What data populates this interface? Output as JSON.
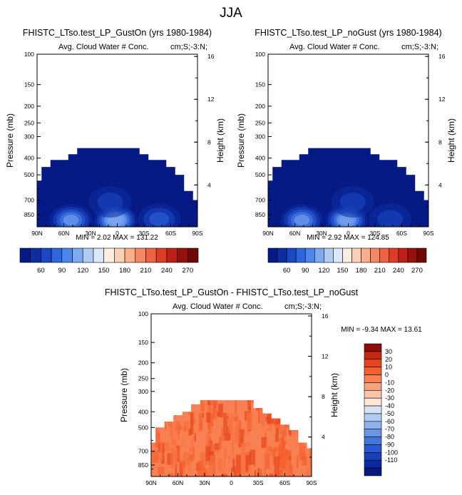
{
  "figure": {
    "title": "JJA",
    "left_title": "FHISTC_LTso.test_LP_GustOn (yrs 1980-1984)",
    "right_title": "FHISTC_LTso.test_LP_noGust (yrs 1980-1984)",
    "diff_title": "FHISTC_LTso.test_LP_GustOn - FHISTC_LTso.test_LP_noGust",
    "variable": "Avg. Cloud Water # Conc.",
    "units": "cm;S;-3:N;",
    "left_ylabel": "Pressure (mb)",
    "right_ylabel": "Height (km)"
  },
  "chart_data": [
    {
      "type": "heatmap",
      "name": "GustOn",
      "title": "FHISTC_LTso.test_LP_GustOn (yrs 1980-1984)",
      "subtitle_left": "Avg. Cloud Water # Conc.",
      "subtitle_right": "cm;S;-3:N;",
      "ylabel": "Pressure (mb)",
      "y2label": "Height (km)",
      "x_ticks": [
        "90N",
        "60N",
        "30N",
        "0",
        "30S",
        "60S",
        "90S"
      ],
      "y_ticks": [
        "100",
        "150",
        "200",
        "250",
        "300",
        "400",
        "500",
        "700",
        "850"
      ],
      "y2_ticks": [
        "16",
        "12",
        "8",
        "4"
      ],
      "ylim_mb": [
        100,
        1000
      ],
      "stats": {
        "min_label": "MIN =",
        "min": "2.02",
        "max_label": "MAX =",
        "max": "131.22"
      },
      "colorbar": {
        "labels": [
          "60",
          "90",
          "120",
          "150",
          "180",
          "210",
          "240",
          "270"
        ],
        "colors": [
          "#051a85",
          "#0d2ea2",
          "#1b47c2",
          "#2f66dd",
          "#4d86ea",
          "#7eaaf1",
          "#b0cbf6",
          "#dbe8fb",
          "#fdeee2",
          "#fbd0b6",
          "#f9ae8c",
          "#f58864",
          "#ee6240",
          "#dc3d26",
          "#bd2016",
          "#961109",
          "#700806"
        ]
      },
      "cloud_top_mb_by_lat": [
        [
          90,
          540
        ],
        [
          80,
          450
        ],
        [
          70,
          410
        ],
        [
          60,
          410
        ],
        [
          50,
          380
        ],
        [
          40,
          350
        ],
        [
          30,
          350
        ],
        [
          20,
          350
        ],
        [
          10,
          350
        ],
        [
          0,
          350
        ],
        [
          -10,
          350
        ],
        [
          -20,
          350
        ],
        [
          -30,
          380
        ],
        [
          -40,
          410
        ],
        [
          -50,
          410
        ],
        [
          -60,
          450
        ],
        [
          -70,
          500
        ],
        [
          -80,
          620
        ],
        [
          -90,
          700
        ]
      ],
      "base_value": 2,
      "blobs": [
        {
          "lat": 52,
          "p": 880,
          "peak": 95
        },
        {
          "lat": 2,
          "p": 880,
          "peak": 131
        },
        {
          "lat": 8,
          "p": 690,
          "peak": 40
        },
        {
          "lat": -47,
          "p": 870,
          "peak": 50
        }
      ]
    },
    {
      "type": "heatmap",
      "name": "noGust",
      "title": "FHISTC_LTso.test_LP_noGust (yrs 1980-1984)",
      "subtitle_left": "Avg. Cloud Water # Conc.",
      "subtitle_right": "cm;S;-3:N;",
      "ylabel": "Pressure (mb)",
      "y2label": "Height (km)",
      "x_ticks": [
        "90N",
        "60N",
        "30N",
        "0",
        "30S",
        "60S",
        "90S"
      ],
      "y_ticks": [
        "100",
        "150",
        "200",
        "250",
        "300",
        "400",
        "500",
        "700",
        "850"
      ],
      "y2_ticks": [
        "16",
        "12",
        "8",
        "4"
      ],
      "ylim_mb": [
        100,
        1000
      ],
      "stats": {
        "min_label": "MIN =",
        "min": "2.92",
        "max_label": "MAX =",
        "max": "124.85"
      },
      "colorbar": {
        "labels": [
          "60",
          "90",
          "120",
          "150",
          "180",
          "210",
          "240",
          "270"
        ],
        "colors": [
          "#051a85",
          "#0d2ea2",
          "#1b47c2",
          "#2f66dd",
          "#4d86ea",
          "#7eaaf1",
          "#b0cbf6",
          "#dbe8fb",
          "#fdeee2",
          "#fbd0b6",
          "#f9ae8c",
          "#f58864",
          "#ee6240",
          "#dc3d26",
          "#bd2016",
          "#961109",
          "#700806"
        ]
      },
      "cloud_top_mb_by_lat": [
        [
          90,
          540
        ],
        [
          80,
          450
        ],
        [
          70,
          410
        ],
        [
          60,
          410
        ],
        [
          50,
          380
        ],
        [
          40,
          350
        ],
        [
          30,
          350
        ],
        [
          20,
          350
        ],
        [
          10,
          350
        ],
        [
          0,
          350
        ],
        [
          -10,
          350
        ],
        [
          -20,
          350
        ],
        [
          -30,
          380
        ],
        [
          -40,
          410
        ],
        [
          -50,
          410
        ],
        [
          -60,
          450
        ],
        [
          -70,
          500
        ],
        [
          -80,
          620
        ],
        [
          -90,
          700
        ]
      ],
      "base_value": 3,
      "blobs": [
        {
          "lat": 52,
          "p": 880,
          "peak": 90
        },
        {
          "lat": 2,
          "p": 880,
          "peak": 124
        },
        {
          "lat": -5,
          "p": 690,
          "peak": 35
        },
        {
          "lat": -47,
          "p": 870,
          "peak": 45
        }
      ]
    },
    {
      "type": "heatmap",
      "name": "difference",
      "title": "FHISTC_LTso.test_LP_GustOn - FHISTC_LTso.test_LP_noGust",
      "subtitle_left": "Avg. Cloud Water # Conc.",
      "subtitle_right": "cm;S;-3:N;",
      "ylabel": "Pressure (mb)",
      "y2label": "Height (km)",
      "x_ticks": [
        "90N",
        "60N",
        "30N",
        "0",
        "30S",
        "60S",
        "90S"
      ],
      "y_ticks": [
        "100",
        "150",
        "200",
        "250",
        "300",
        "400",
        "500",
        "700",
        "850"
      ],
      "y2_ticks": [
        "16",
        "12",
        "8",
        "4"
      ],
      "ylim_mb": [
        100,
        1000
      ],
      "stats": {
        "min_label": "MIN =",
        "min": "-9.34",
        "max_label": "MAX =",
        "max": "13.61"
      },
      "colorbar": {
        "labels": [
          "30",
          "20",
          "10",
          "0",
          "-10",
          "-20",
          "-30",
          "-40",
          "-50",
          "-60",
          "-70",
          "-80",
          "-90",
          "-100",
          "-110"
        ],
        "colors": [
          "#8e0c05",
          "#c42a12",
          "#e8461c",
          "#f5602d",
          "#f98052",
          "#fba17d",
          "#fcc5a8",
          "#fde6d6",
          "#d6e3f6",
          "#b2ccf1",
          "#8fb2ec",
          "#6a94e5",
          "#4476de",
          "#2759d2",
          "#1740bd",
          "#0b2aa1",
          "#05197e"
        ]
      },
      "cloud_top_mb_by_lat": [
        [
          90,
          620
        ],
        [
          80,
          500
        ],
        [
          70,
          460
        ],
        [
          60,
          420
        ],
        [
          50,
          400
        ],
        [
          40,
          360
        ],
        [
          30,
          340
        ],
        [
          20,
          340
        ],
        [
          10,
          340
        ],
        [
          0,
          340
        ],
        [
          -10,
          340
        ],
        [
          -20,
          340
        ],
        [
          -30,
          380
        ],
        [
          -40,
          410
        ],
        [
          -50,
          440
        ],
        [
          -60,
          480
        ],
        [
          -70,
          520
        ],
        [
          -80,
          620
        ],
        [
          -90,
          670
        ]
      ],
      "field_colors": [
        "#f5602d",
        "#f98052",
        "#f7703e",
        "#e8461c"
      ]
    }
  ]
}
